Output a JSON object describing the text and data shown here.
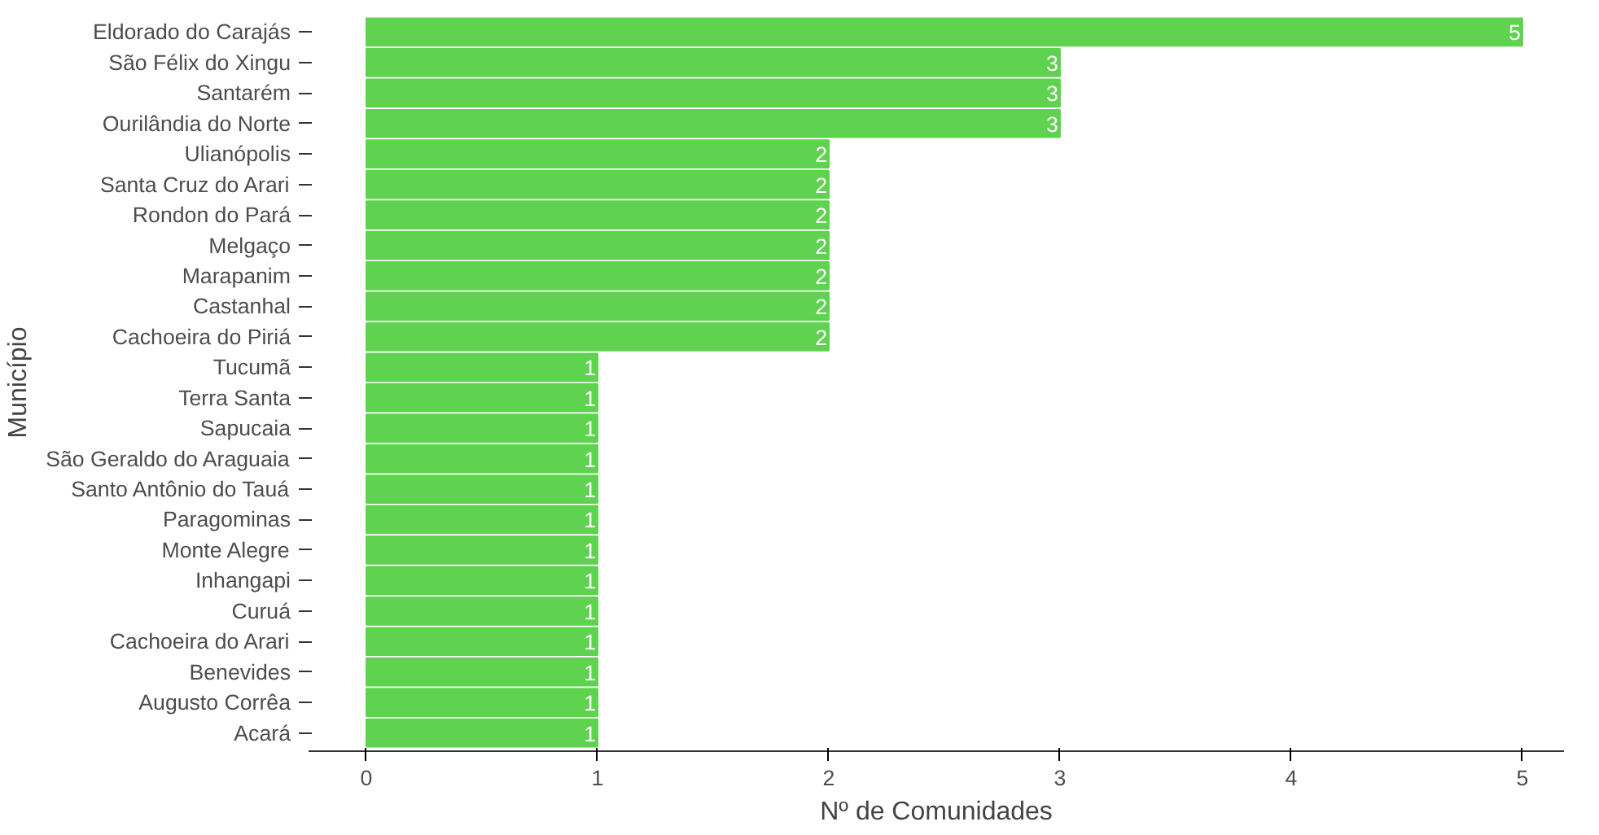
{
  "chart_data": {
    "type": "bar",
    "orientation": "horizontal",
    "xlabel": "Nº de Comunidades",
    "ylabel": "Município",
    "categories": [
      "Eldorado do Carajás",
      "São Félix do Xingu",
      "Santarém",
      "Ourilândia do Norte",
      "Ulianópolis",
      "Santa Cruz do Arari",
      "Rondon do Pará",
      "Melgaço",
      "Marapanim",
      "Castanhal",
      "Cachoeira do Piriá",
      "Tucumã",
      "Terra Santa",
      "Sapucaia",
      "São Geraldo do Araguaia",
      "Santo Antônio do Tauá",
      "Paragominas",
      "Monte Alegre",
      "Inhangapi",
      "Curuá",
      "Cachoeira do Arari",
      "Benevides",
      "Augusto Corrêa",
      "Acará"
    ],
    "values": [
      5,
      3,
      3,
      3,
      2,
      2,
      2,
      2,
      2,
      2,
      2,
      1,
      1,
      1,
      1,
      1,
      1,
      1,
      1,
      1,
      1,
      1,
      1,
      1
    ],
    "color": "#5fd24f",
    "xlim": [
      -0.25,
      5.18
    ],
    "xticks": [
      0,
      1,
      2,
      3,
      4,
      5
    ],
    "data_labels": true,
    "grid": false
  }
}
